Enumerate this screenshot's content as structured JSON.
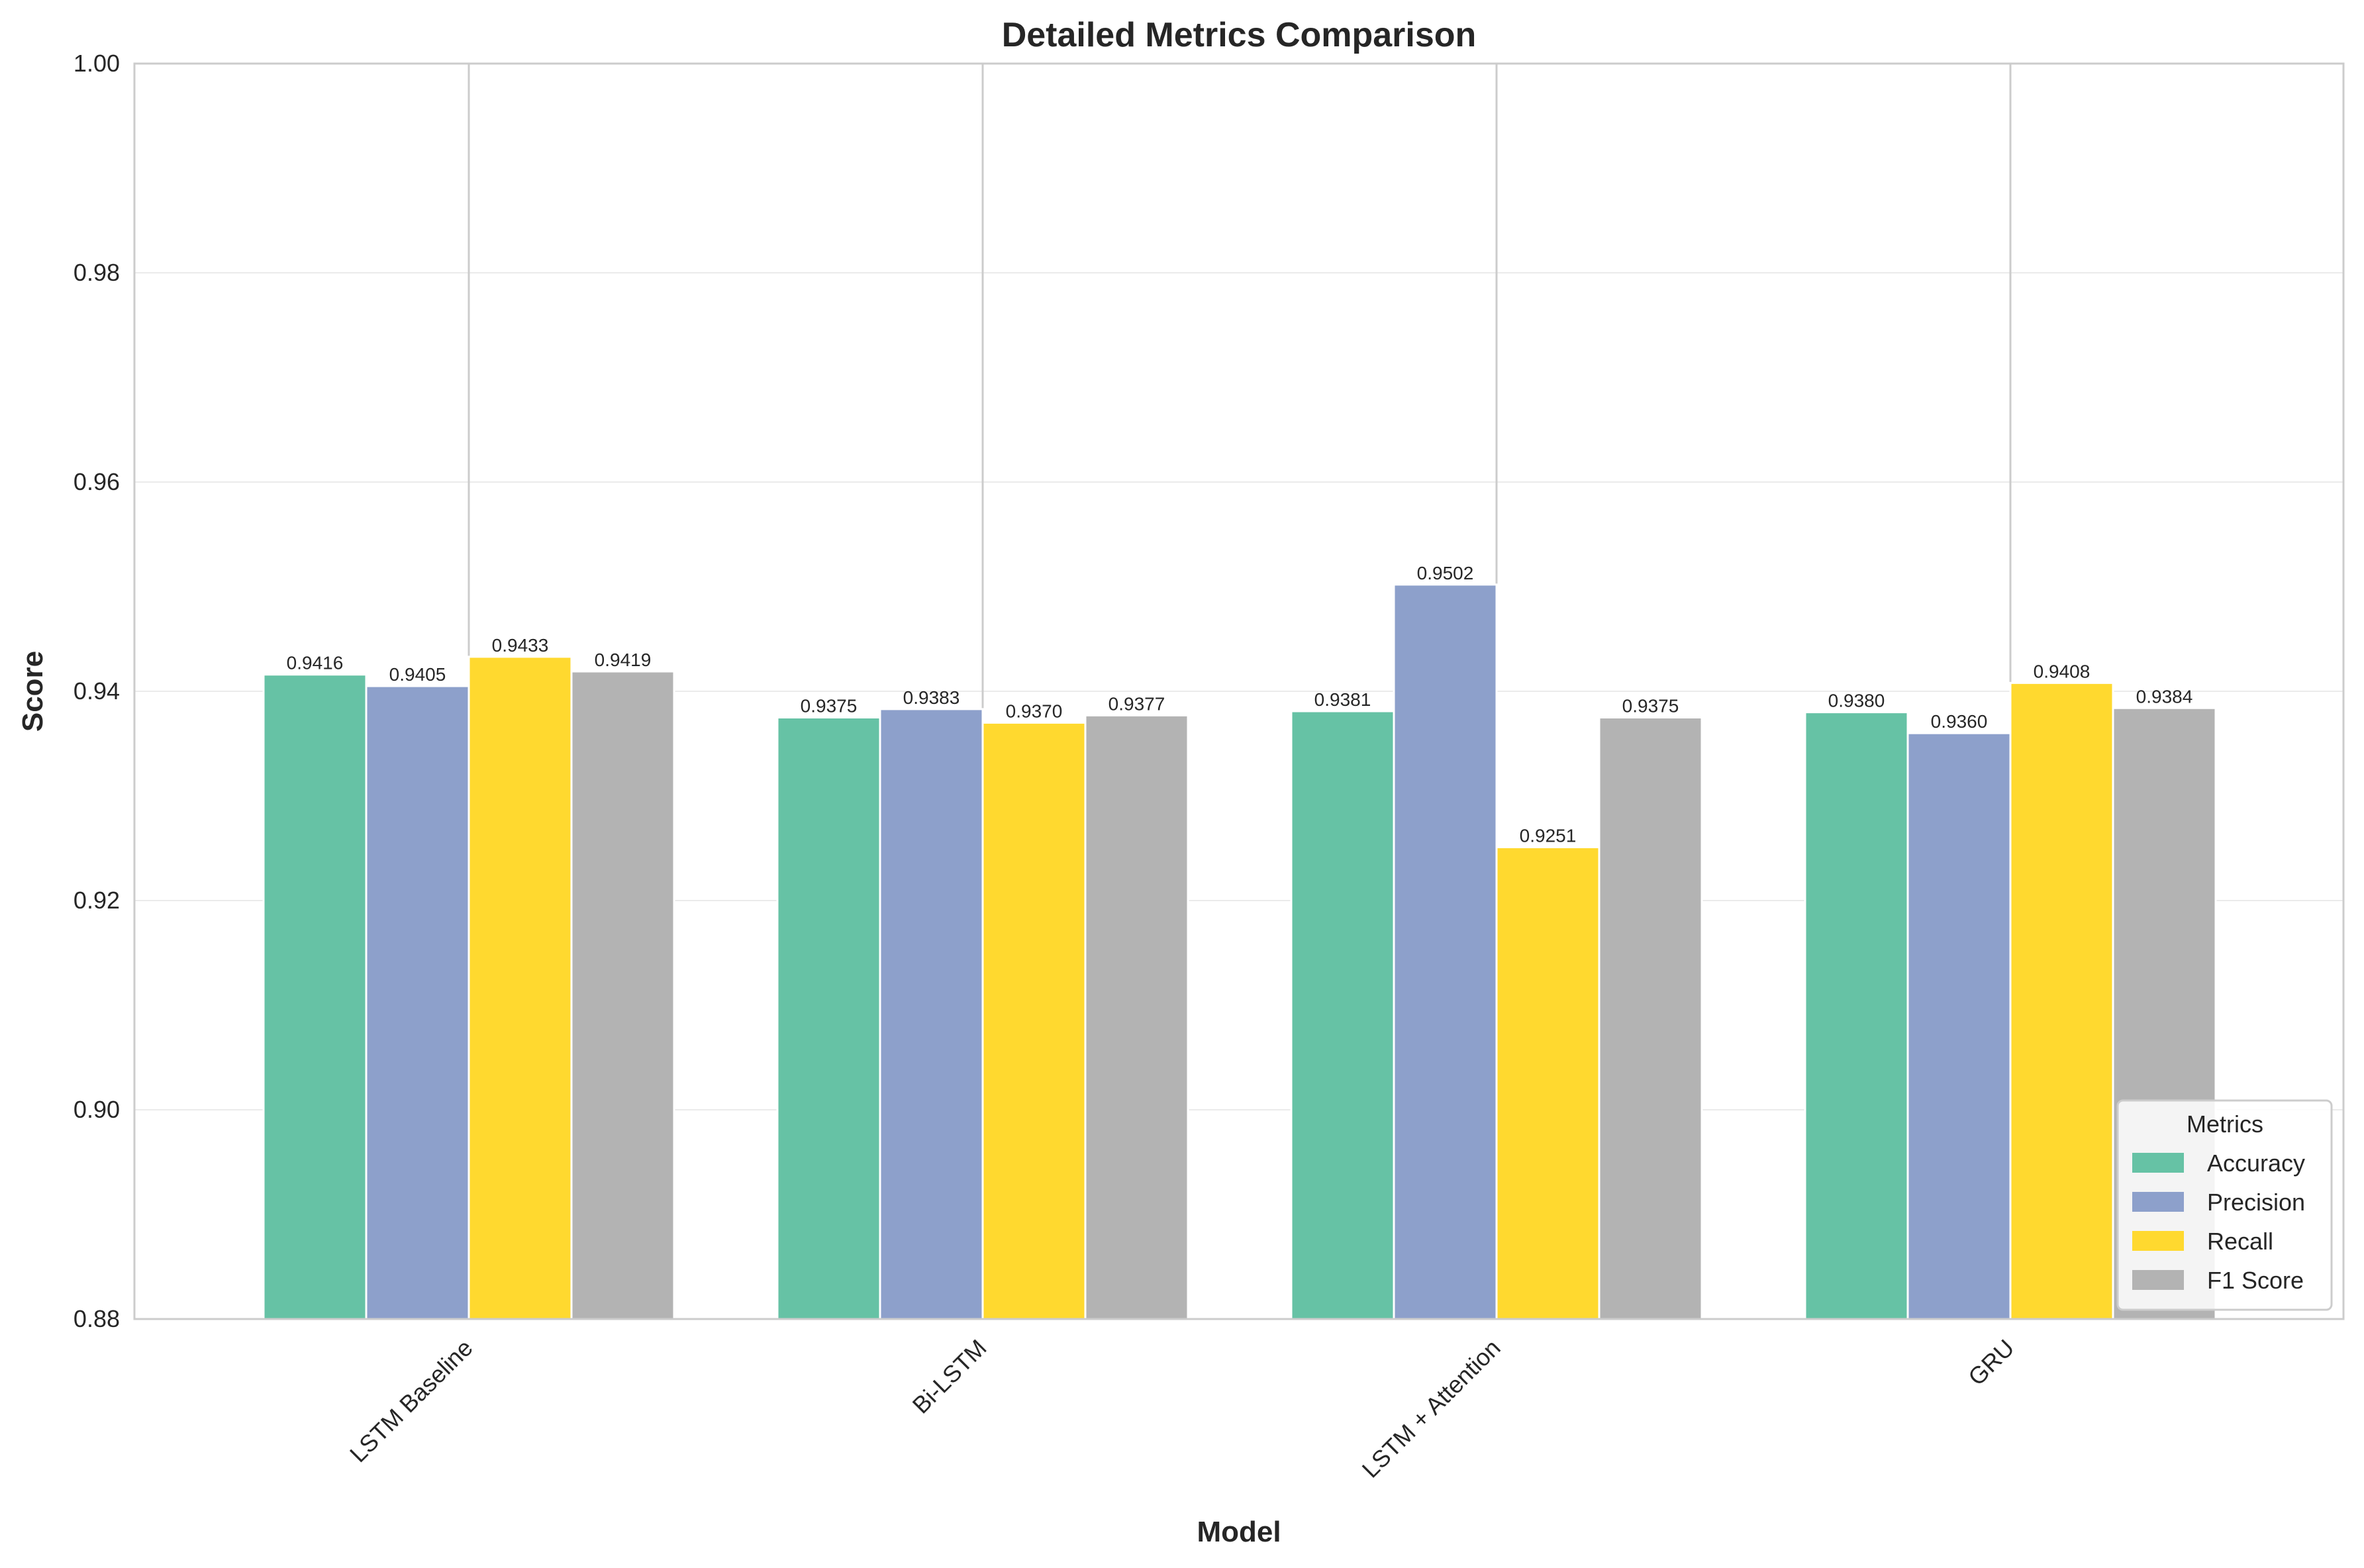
{
  "chart_data": {
    "type": "bar",
    "title": "Detailed Metrics Comparison",
    "xlabel": "Model",
    "ylabel": "Score",
    "ylim": [
      0.88,
      1.0
    ],
    "yticks": [
      "0.88",
      "0.90",
      "0.92",
      "0.94",
      "0.96",
      "0.98",
      "1.00"
    ],
    "categories": [
      "LSTM Baseline",
      "Bi-LSTM",
      "LSTM + Attention",
      "GRU"
    ],
    "series": [
      {
        "name": "Accuracy",
        "color": "#66c2a5",
        "values": [
          0.9416,
          0.9375,
          0.9381,
          0.938
        ],
        "labels": [
          "0.9416",
          "0.9375",
          "0.9381",
          "0.9380"
        ]
      },
      {
        "name": "Precision",
        "color": "#8da0cb",
        "values": [
          0.9405,
          0.9383,
          0.9502,
          0.936
        ],
        "labels": [
          "0.9405",
          "0.9383",
          "0.9502",
          "0.9360"
        ]
      },
      {
        "name": "Recall",
        "color": "#ffd92f",
        "values": [
          0.9433,
          0.937,
          0.9251,
          0.9408
        ],
        "labels": [
          "0.9433",
          "0.9370",
          "0.9251",
          "0.9408"
        ]
      },
      {
        "name": "F1 Score",
        "color": "#b3b3b3",
        "values": [
          0.9419,
          0.9377,
          0.9375,
          0.9384
        ],
        "labels": [
          "0.9419",
          "0.9377",
          "0.9375",
          "0.9384"
        ]
      }
    ],
    "legend": {
      "title": "Metrics",
      "placement": "lower-right"
    },
    "grid": true
  }
}
